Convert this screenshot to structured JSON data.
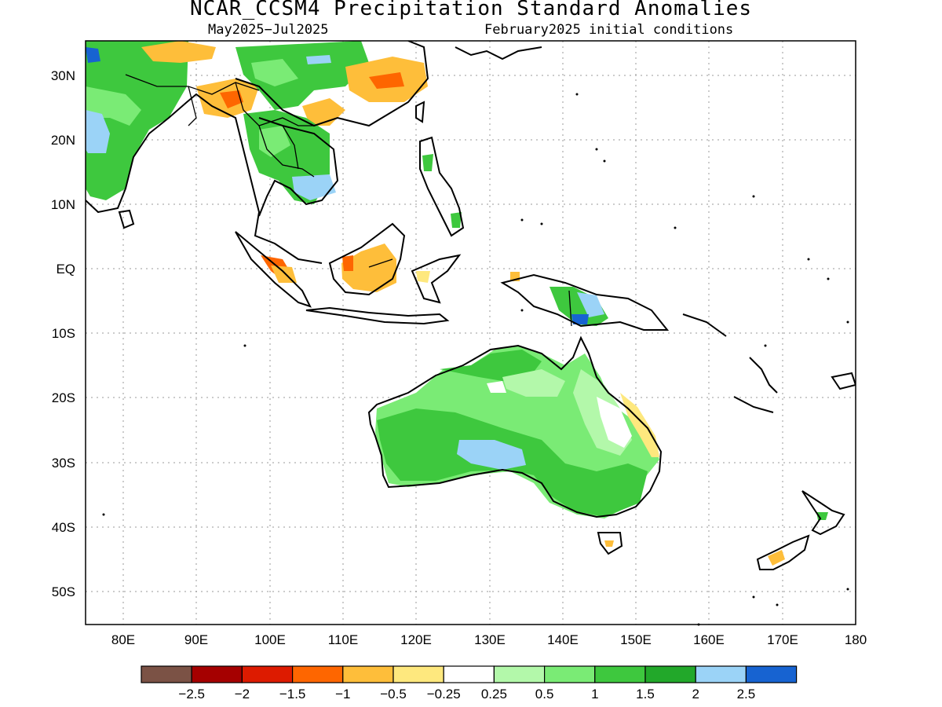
{
  "title": "NCAR_CCSM4 Precipitation Standard Anomalies",
  "subtitle_left": "May2025−Jul2025",
  "subtitle_right": "February2025 initial conditions",
  "y_ticks": [
    "30N",
    "20N",
    "10N",
    "EQ",
    "10S",
    "20S",
    "30S",
    "40S",
    "50S"
  ],
  "x_ticks": [
    "80E",
    "90E",
    "100E",
    "110E",
    "120E",
    "130E",
    "140E",
    "150E",
    "160E",
    "170E",
    "180"
  ],
  "colorbar": {
    "colors": [
      "#7b5245",
      "#a50000",
      "#dd1b00",
      "#fe6600",
      "#febe3a",
      "#fee87e",
      "#ffffff",
      "#b3f8aa",
      "#7aeb75",
      "#3ec83e",
      "#22a82a",
      "#9bd3f7",
      "#1763d1"
    ],
    "labels": [
      "−2.5",
      "−2",
      "−1.5",
      "−1",
      "−0.5",
      "−0.25",
      "0.25",
      "0.5",
      "1",
      "1.5",
      "2",
      "2.5"
    ]
  },
  "regions": [
    {
      "name": "india-green",
      "color": "#3ec83e"
    },
    {
      "name": "india-light",
      "color": "#9bd3f7"
    },
    {
      "name": "tibet-orange",
      "color": "#febe3a"
    },
    {
      "name": "china-orange",
      "color": "#febe3a"
    },
    {
      "name": "indochina-green",
      "color": "#3ec83e"
    },
    {
      "name": "borneo-orange",
      "color": "#febe3a"
    },
    {
      "name": "sumatra-red",
      "color": "#fe6600"
    },
    {
      "name": "newguinea-green",
      "color": "#3ec83e"
    },
    {
      "name": "australia-green",
      "color": "#3ec83e"
    },
    {
      "name": "australia-blue",
      "color": "#9bd3f7"
    },
    {
      "name": "newzealand-orange",
      "color": "#febe3a"
    }
  ]
}
